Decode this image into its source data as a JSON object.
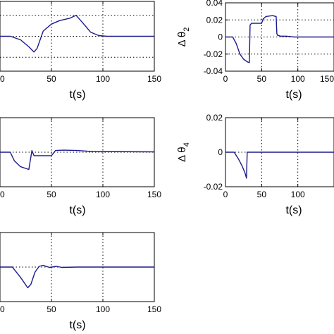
{
  "chart_data": [
    {
      "type": "line",
      "xlabel": "t(s)",
      "ylabel": "",
      "xlim": [
        0,
        150
      ],
      "ylim": [
        -1,
        1
      ],
      "x_ticks": [
        "0",
        "50",
        "100",
        "150"
      ],
      "y_ticks": [],
      "y_grid": [
        -0.6,
        0,
        0.6
      ],
      "grid": true,
      "series": [
        {
          "x": [
            0,
            10,
            20,
            28,
            33,
            36,
            42,
            50,
            58,
            68,
            74,
            80,
            88,
            96,
            104,
            150
          ],
          "y": [
            0,
            0,
            -0.1,
            -0.3,
            -0.45,
            -0.35,
            0.15,
            0.35,
            0.45,
            0.52,
            0.6,
            0.4,
            0.12,
            0.02,
            0,
            0
          ]
        }
      ]
    },
    {
      "type": "line",
      "xlabel": "t(s)",
      "ylabel": "Δ θ",
      "ylabel_sub": "2",
      "xlim": [
        0,
        150
      ],
      "ylim": [
        -0.04,
        0.04
      ],
      "x_ticks": [
        "0",
        "50",
        "100",
        "150"
      ],
      "y_ticks": [
        "0.04",
        "0.02",
        "0",
        "-0.02",
        "-0.04"
      ],
      "y_tick_values": [
        0.04,
        0.02,
        0,
        -0.02,
        -0.04
      ],
      "grid": true,
      "series": [
        {
          "x": [
            0,
            10,
            15,
            20,
            25,
            30,
            33,
            34,
            36,
            50,
            52,
            56,
            65,
            70,
            71,
            72,
            76,
            84,
            95,
            110,
            150
          ],
          "y": [
            0,
            0,
            -0.008,
            -0.02,
            -0.026,
            -0.029,
            -0.03,
            0.014,
            0.016,
            0.016,
            0.021,
            0.024,
            0.025,
            0.024,
            0.004,
            0.002,
            0.001,
            0.001,
            0,
            0,
            0
          ]
        }
      ]
    },
    {
      "type": "line",
      "xlabel": "t(s)",
      "ylabel": "",
      "xlim": [
        0,
        150
      ],
      "ylim": [
        -1,
        1
      ],
      "x_ticks": [
        "0",
        "50",
        "100",
        "150"
      ],
      "y_ticks": [],
      "y_grid": [
        0
      ],
      "grid": true,
      "series": [
        {
          "x": [
            0,
            10,
            14,
            20,
            28,
            31,
            33,
            38,
            50,
            54,
            62,
            75,
            90,
            150
          ],
          "y": [
            0,
            0,
            -0.25,
            -0.42,
            -0.5,
            0.05,
            -0.1,
            -0.1,
            -0.1,
            0.05,
            0.06,
            0.05,
            0.02,
            0.01
          ]
        }
      ]
    },
    {
      "type": "line",
      "xlabel": "t(s)",
      "ylabel": "Δ θ",
      "ylabel_sub": "4",
      "xlim": [
        0,
        150
      ],
      "ylim": [
        -0.02,
        0.02
      ],
      "x_ticks": [
        "0",
        "50",
        "100"
      ],
      "y_ticks": [
        "0.02",
        "0",
        "-0.02"
      ],
      "y_tick_values": [
        0.02,
        0,
        -0.02
      ],
      "grid": true,
      "series": [
        {
          "x": [
            0,
            12,
            18,
            23,
            27,
            29,
            30,
            150
          ],
          "y": [
            0,
            0,
            -0.004,
            -0.008,
            -0.012,
            -0.015,
            0,
            0
          ]
        }
      ]
    },
    {
      "type": "line",
      "xlabel": "t(s)",
      "ylabel": "",
      "xlim": [
        0,
        150
      ],
      "ylim": [
        -1,
        1
      ],
      "x_ticks": [
        "0",
        "50",
        "100",
        "150"
      ],
      "y_ticks": [],
      "y_grid": [
        0
      ],
      "grid": true,
      "series": [
        {
          "x": [
            0,
            12,
            20,
            27,
            30,
            34,
            38,
            42,
            48,
            55,
            60,
            75,
            150
          ],
          "y": [
            0,
            0,
            -0.3,
            -0.6,
            -0.5,
            -0.15,
            0.02,
            0.05,
            -0.01,
            0.02,
            -0.01,
            0,
            0
          ]
        }
      ]
    }
  ]
}
